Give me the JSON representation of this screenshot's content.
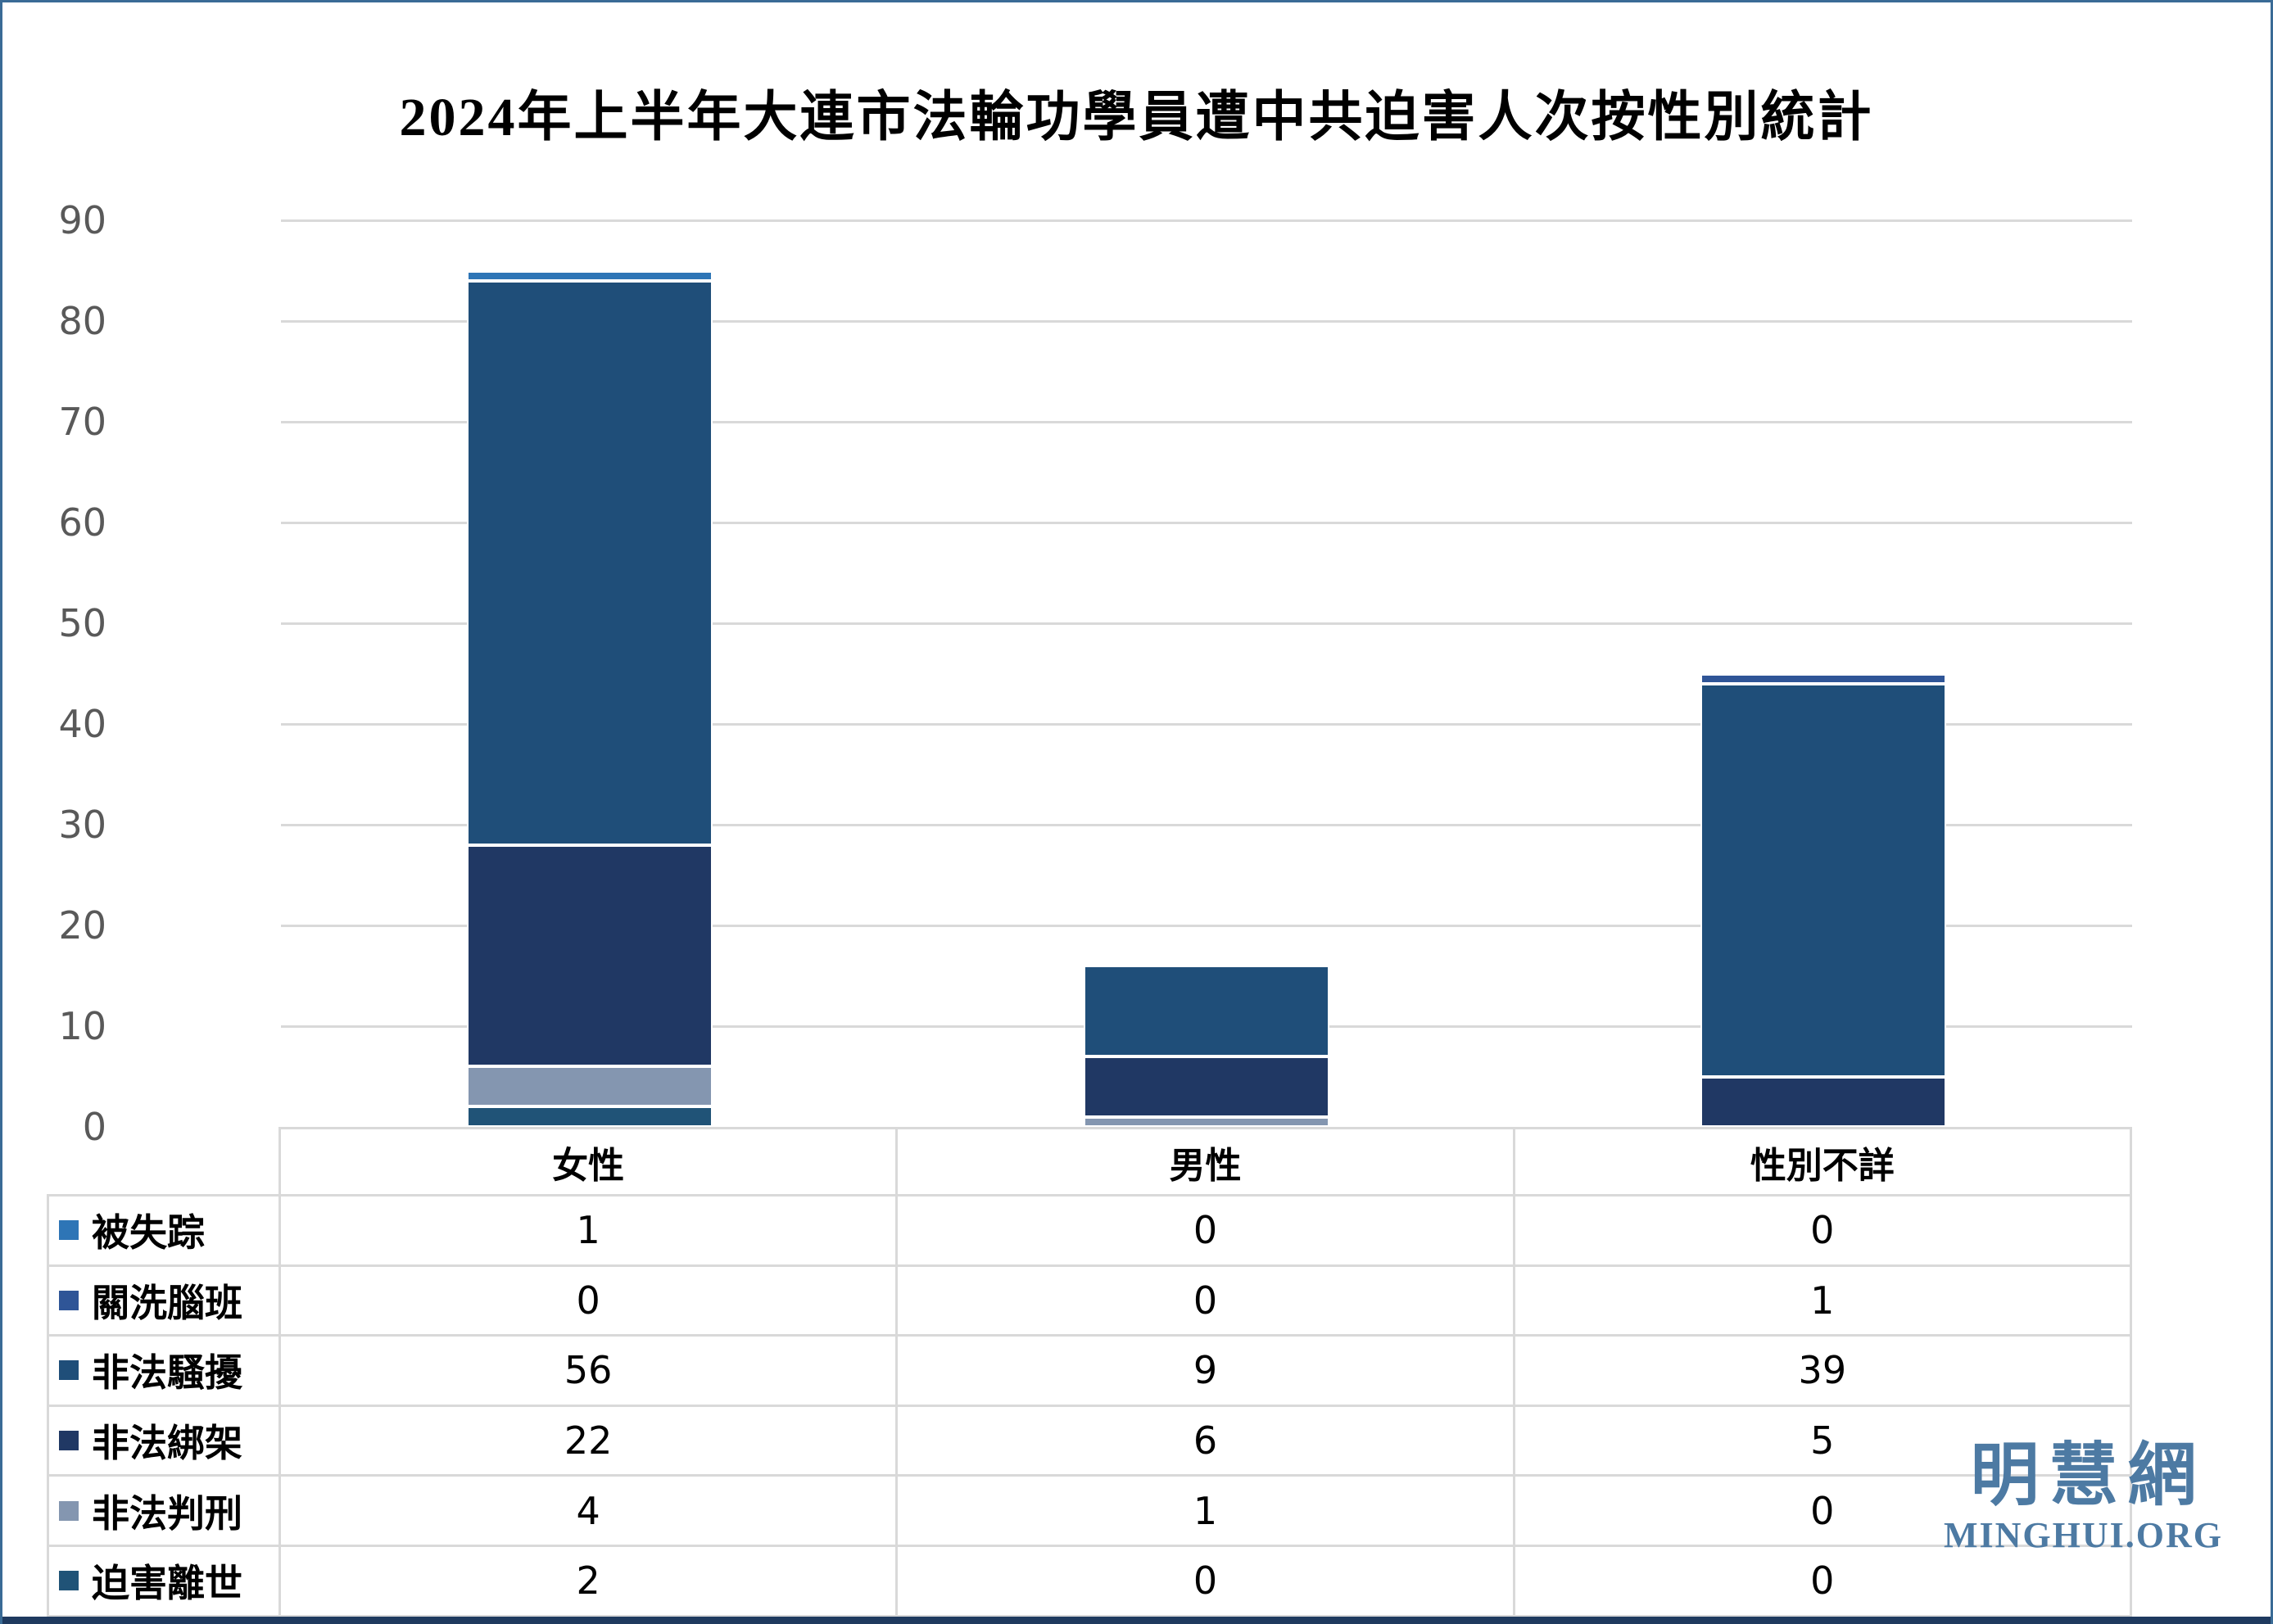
{
  "title": "2024年上半年大連市法輪功學員遭中共迫害人次按性別統計",
  "watermark": {
    "cn": "明慧網",
    "en": "MINGHUI.ORG",
    "color": "#4d7aa3"
  },
  "colors": {
    "gridline": "#d9d9d9",
    "tick_text": "#595959",
    "frame_border": "#3a6b96",
    "frame_bottom": "#1f3a5f",
    "segment_outline": "#ffffff"
  },
  "chart_data": {
    "type": "bar",
    "stacked": true,
    "title": "2024年上半年大連市法輪功學員遭中共迫害人次按性別統計",
    "categories": [
      "女性",
      "男性",
      "性別不詳"
    ],
    "series": [
      {
        "name": "被失踪",
        "color": "#2e75b6",
        "values": [
          1,
          0,
          0
        ]
      },
      {
        "name": "關洗腦班",
        "color": "#2f5597",
        "values": [
          0,
          0,
          1
        ]
      },
      {
        "name": "非法騷擾",
        "color": "#1f4e79",
        "values": [
          56,
          9,
          39
        ]
      },
      {
        "name": "非法綁架",
        "color": "#203864",
        "values": [
          22,
          6,
          5
        ]
      },
      {
        "name": "非法判刑",
        "color": "#8496b0",
        "values": [
          4,
          1,
          0
        ]
      },
      {
        "name": "迫害離世",
        "color": "#205377",
        "values": [
          2,
          0,
          0
        ]
      }
    ],
    "stack_order_bottom_to_top": [
      "迫害離世",
      "非法判刑",
      "非法綁架",
      "非法騷擾",
      "關洗腦班",
      "被失踪"
    ],
    "totals": [
      85,
      16,
      45
    ],
    "xlabel": "",
    "ylabel": "",
    "y_axis": {
      "min": 0,
      "max": 90,
      "step": 10,
      "ticks": [
        90,
        80,
        70,
        60,
        50,
        40,
        30,
        20,
        10,
        0
      ]
    },
    "grid": true,
    "legend_position": "table-rows-left"
  }
}
